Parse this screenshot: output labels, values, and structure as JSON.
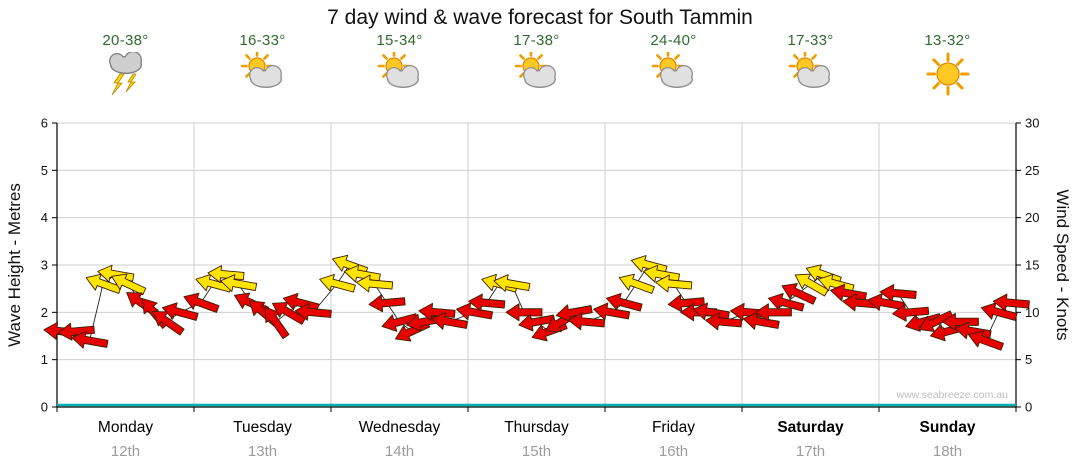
{
  "title": "7 day wind & wave forecast for South Tammin",
  "watermark": "www.seabreeze.com.au",
  "days": [
    {
      "name": "Monday",
      "date": "12th",
      "temp": "20-38°",
      "icon": "storm",
      "bold": false
    },
    {
      "name": "Tuesday",
      "date": "13th",
      "temp": "16-33°",
      "icon": "sun-cloud",
      "bold": false
    },
    {
      "name": "Wednesday",
      "date": "14th",
      "temp": "15-34°",
      "icon": "sun-cloud",
      "bold": false
    },
    {
      "name": "Thursday",
      "date": "15th",
      "temp": "17-38°",
      "icon": "sun-cloud",
      "bold": false
    },
    {
      "name": "Friday",
      "date": "16th",
      "temp": "24-40°",
      "icon": "sun-cloud",
      "bold": false
    },
    {
      "name": "Saturday",
      "date": "17th",
      "temp": "17-33°",
      "icon": "sun-cloud",
      "bold": true
    },
    {
      "name": "Sunday",
      "date": "18th",
      "temp": "13-32°",
      "icon": "sun",
      "bold": true
    }
  ],
  "chart_data": {
    "type": "scatter",
    "subtype": "wind-arrow-timeline-with-wave-line",
    "title": "7 day wind & wave forecast for South Tammin",
    "x_categories": [
      "Monday 12th",
      "Tuesday 13th",
      "Wednesday 14th",
      "Thursday 15th",
      "Friday 16th",
      "Saturday 17th",
      "Sunday 18th"
    ],
    "y_left": {
      "label": "Wave Height - Metres",
      "range": [
        0,
        6
      ],
      "ticks": [
        0,
        1,
        2,
        3,
        4,
        5,
        6
      ]
    },
    "y_right": {
      "label": "Wind Speed - Knots",
      "range": [
        0,
        30
      ],
      "ticks": [
        0,
        5,
        10,
        15,
        20,
        25,
        30
      ]
    },
    "grid": true,
    "legend": "none",
    "wave_height_line": {
      "color": "#00b0b0",
      "constant_value_m": 0
    },
    "arrow_colors": {
      "r": "#e60000",
      "y": "#ffe400"
    },
    "wind_arrows_columns": [
      "time_fraction",
      "knots",
      "direction_deg",
      "color"
    ],
    "wind_arrows": [
      [
        0.005,
        8,
        185,
        "r"
      ],
      [
        0.02,
        8,
        175,
        "r"
      ],
      [
        0.034,
        7,
        190,
        "r"
      ],
      [
        0.048,
        13,
        200,
        "y"
      ],
      [
        0.061,
        14,
        190,
        "y"
      ],
      [
        0.074,
        13,
        205,
        "y"
      ],
      [
        0.088,
        11,
        215,
        "r"
      ],
      [
        0.101,
        10,
        230,
        "r"
      ],
      [
        0.115,
        9,
        215,
        "r"
      ],
      [
        0.128,
        10,
        195,
        "r"
      ],
      [
        0.15,
        11,
        200,
        "r"
      ],
      [
        0.163,
        13,
        195,
        "y"
      ],
      [
        0.176,
        14,
        185,
        "y"
      ],
      [
        0.189,
        13,
        190,
        "y"
      ],
      [
        0.202,
        11,
        205,
        "r"
      ],
      [
        0.215,
        10,
        220,
        "r"
      ],
      [
        0.228,
        9,
        235,
        "r"
      ],
      [
        0.241,
        10,
        210,
        "r"
      ],
      [
        0.254,
        11,
        195,
        "r"
      ],
      [
        0.267,
        10,
        185,
        "r"
      ],
      [
        0.292,
        13,
        195,
        "y"
      ],
      [
        0.305,
        15,
        200,
        "y"
      ],
      [
        0.318,
        14,
        190,
        "y"
      ],
      [
        0.331,
        13,
        185,
        "y"
      ],
      [
        0.344,
        11,
        175,
        "r"
      ],
      [
        0.357,
        9,
        165,
        "r"
      ],
      [
        0.37,
        8,
        155,
        "r"
      ],
      [
        0.383,
        9,
        170,
        "r"
      ],
      [
        0.396,
        10,
        185,
        "r"
      ],
      [
        0.409,
        9,
        190,
        "r"
      ],
      [
        0.435,
        10,
        190,
        "r"
      ],
      [
        0.448,
        11,
        185,
        "r"
      ],
      [
        0.461,
        13,
        195,
        "y"
      ],
      [
        0.474,
        13,
        190,
        "y"
      ],
      [
        0.487,
        10,
        180,
        "r"
      ],
      [
        0.5,
        9,
        170,
        "r"
      ],
      [
        0.513,
        8,
        160,
        "r"
      ],
      [
        0.526,
        9,
        150,
        "r"
      ],
      [
        0.539,
        10,
        170,
        "r"
      ],
      [
        0.552,
        9,
        185,
        "r"
      ],
      [
        0.578,
        10,
        190,
        "r"
      ],
      [
        0.591,
        11,
        195,
        "r"
      ],
      [
        0.604,
        13,
        200,
        "y"
      ],
      [
        0.617,
        15,
        195,
        "y"
      ],
      [
        0.63,
        14,
        190,
        "y"
      ],
      [
        0.643,
        13,
        185,
        "y"
      ],
      [
        0.656,
        11,
        175,
        "r"
      ],
      [
        0.669,
        10,
        180,
        "r"
      ],
      [
        0.682,
        10,
        190,
        "r"
      ],
      [
        0.695,
        9,
        185,
        "r"
      ],
      [
        0.721,
        10,
        185,
        "r"
      ],
      [
        0.734,
        9,
        190,
        "r"
      ],
      [
        0.747,
        10,
        180,
        "r"
      ],
      [
        0.76,
        11,
        195,
        "r"
      ],
      [
        0.773,
        12,
        205,
        "r"
      ],
      [
        0.786,
        13,
        210,
        "y"
      ],
      [
        0.799,
        14,
        200,
        "y"
      ],
      [
        0.812,
        13,
        195,
        "y"
      ],
      [
        0.825,
        12,
        190,
        "r"
      ],
      [
        0.838,
        11,
        185,
        "r"
      ],
      [
        0.864,
        11,
        190,
        "r"
      ],
      [
        0.877,
        12,
        185,
        "r"
      ],
      [
        0.89,
        10,
        175,
        "r"
      ],
      [
        0.903,
        9,
        165,
        "r"
      ],
      [
        0.916,
        9,
        155,
        "r"
      ],
      [
        0.929,
        8,
        165,
        "r"
      ],
      [
        0.942,
        9,
        180,
        "r"
      ],
      [
        0.955,
        8,
        190,
        "r"
      ],
      [
        0.968,
        7,
        200,
        "r"
      ],
      [
        0.982,
        10,
        195,
        "r"
      ],
      [
        0.995,
        11,
        185,
        "r"
      ]
    ]
  }
}
